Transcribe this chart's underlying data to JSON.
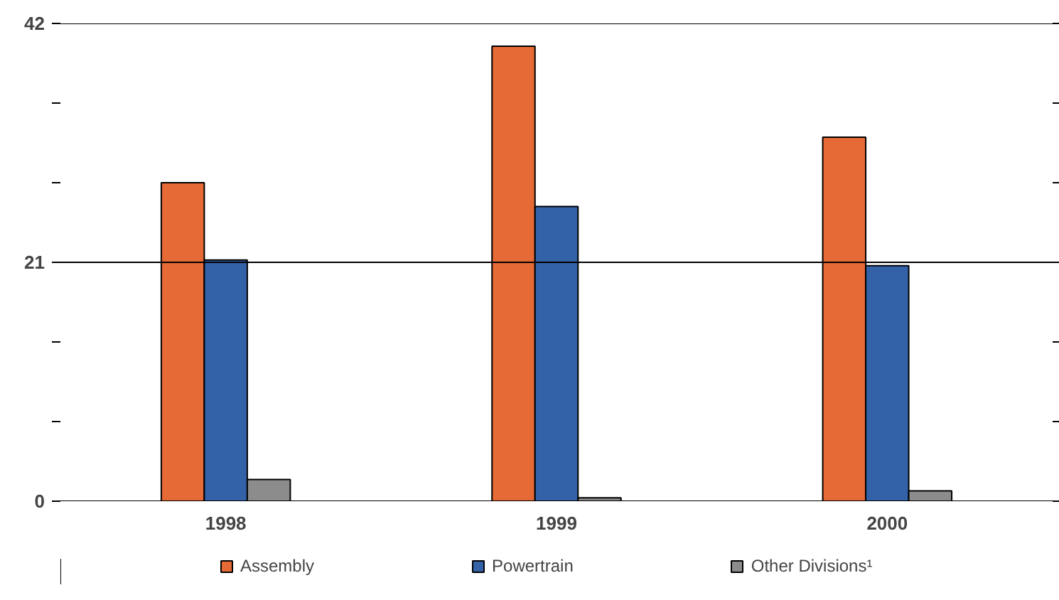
{
  "chart_data": {
    "type": "bar",
    "categories": [
      "1998",
      "1999",
      "2000"
    ],
    "series": [
      {
        "name": "Assembly",
        "color": "#e66a35",
        "values": [
          28,
          40,
          32
        ]
      },
      {
        "name": "Powertrain",
        "color": "#3462a8",
        "values": [
          21.2,
          25.9,
          20.7
        ]
      },
      {
        "name": "Other Divisions¹",
        "color": "#8c8c8c",
        "values": [
          1.9,
          0.3,
          0.9
        ]
      }
    ],
    "ylim": [
      0,
      42
    ],
    "yticks": [
      0,
      {
        "value": 7,
        "label": null
      },
      {
        "value": 14,
        "label": null
      },
      21,
      {
        "value": 28,
        "label": null
      },
      {
        "value": 35,
        "label": null
      },
      42
    ],
    "grid": "y",
    "legend": "bottom"
  }
}
